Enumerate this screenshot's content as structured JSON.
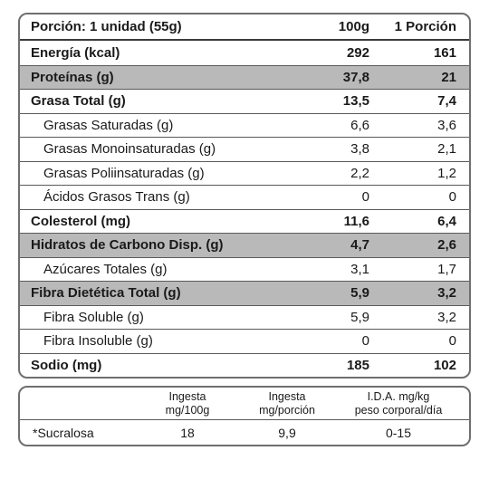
{
  "header": {
    "label": "Porción: 1 unidad (55g)",
    "col2": "100g",
    "col3": "1 Porción"
  },
  "rows": [
    {
      "label": "Energía (kcal)",
      "v100": "292",
      "vp": "161",
      "style": "bold"
    },
    {
      "label": "Proteínas (g)",
      "v100": "37,8",
      "vp": "21",
      "style": "shaded"
    },
    {
      "label": "Grasa Total (g)",
      "v100": "13,5",
      "vp": "7,4",
      "style": "bold"
    },
    {
      "label": "Grasas Saturadas (g)",
      "v100": "6,6",
      "vp": "3,6",
      "style": "sub"
    },
    {
      "label": "Grasas Monoinsaturadas (g)",
      "v100": "3,8",
      "vp": "2,1",
      "style": "sub"
    },
    {
      "label": "Grasas Poliinsaturadas (g)",
      "v100": "2,2",
      "vp": "1,2",
      "style": "sub"
    },
    {
      "label": "Ácidos Grasos Trans (g)",
      "v100": "0",
      "vp": "0",
      "style": "sub"
    },
    {
      "label": "Colesterol (mg)",
      "v100": "11,6",
      "vp": "6,4",
      "style": "bold"
    },
    {
      "label": "Hidratos de Carbono Disp. (g)",
      "v100": "4,7",
      "vp": "2,6",
      "style": "shaded"
    },
    {
      "label": "Azúcares Totales (g)",
      "v100": "3,1",
      "vp": "1,7",
      "style": "sub"
    },
    {
      "label": "Fibra Dietética Total (g)",
      "v100": "5,9",
      "vp": "3,2",
      "style": "shaded"
    },
    {
      "label": "Fibra Soluble (g)",
      "v100": "5,9",
      "vp": "3,2",
      "style": "sub"
    },
    {
      "label": "Fibra Insoluble (g)",
      "v100": "0",
      "vp": "0",
      "style": "sub"
    },
    {
      "label": "Sodio (mg)",
      "v100": "185",
      "vp": "102",
      "style": "bold"
    }
  ],
  "footer": {
    "h1": "",
    "h2a": "Ingesta",
    "h2b": "mg/100g",
    "h3a": "Ingesta",
    "h3b": "mg/porción",
    "h4a": "I.D.A. mg/kg",
    "h4b": "peso corporal/día",
    "name": "*Sucralosa",
    "v1": "18",
    "v2": "9,9",
    "v3": "0-15"
  }
}
